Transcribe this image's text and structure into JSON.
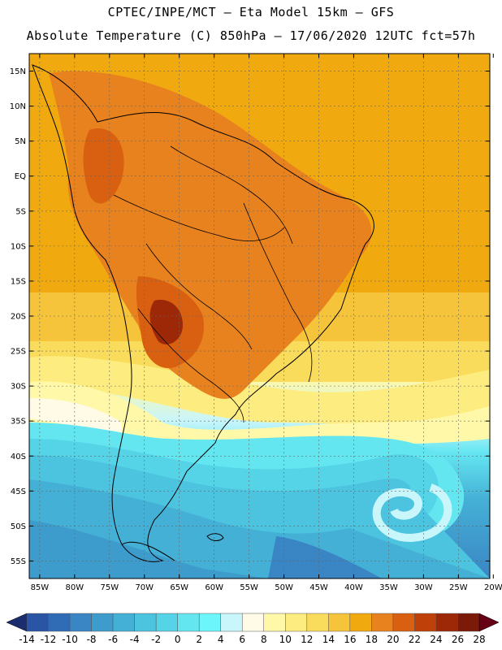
{
  "header": {
    "line1": "CPTEC/INPE/MCT —  Eta Model 15km — GFS",
    "line2": "Absolute Temperature (C) 850hPa — 17/06/2020 12UTC fct=57h"
  },
  "map": {
    "lat_labels": [
      "15N",
      "10N",
      "5N",
      "EQ",
      "5S",
      "10S",
      "15S",
      "20S",
      "25S",
      "30S",
      "35S",
      "40S",
      "45S",
      "50S",
      "55S"
    ],
    "lon_labels": [
      "85W",
      "80W",
      "75W",
      "70W",
      "65W",
      "60W",
      "55W",
      "50W",
      "45W",
      "40W",
      "35W",
      "30W",
      "25W",
      "20W"
    ],
    "lat_range": [
      17.5,
      -57.5
    ],
    "lon_range": [
      -86.5,
      -20.5
    ]
  },
  "colorbar": {
    "labels": [
      "-14",
      "-12",
      "-10",
      "-8",
      "-6",
      "-4",
      "-2",
      "0",
      "2",
      "4",
      "6",
      "8",
      "10",
      "12",
      "14",
      "16",
      "18",
      "20",
      "22",
      "24",
      "26",
      "28"
    ],
    "colors": [
      "#1f3c8c",
      "#2a55a5",
      "#2f6cb5",
      "#3a85c4",
      "#3e9ccc",
      "#45b0d6",
      "#4cc3df",
      "#55d4e8",
      "#64e6f1",
      "#6cf6fb",
      "#c8f6fb",
      "#fffbe6",
      "#fff8a8",
      "#fdec80",
      "#fadc5c",
      "#f5c43a",
      "#f0aa0f",
      "#e8821e",
      "#d86010",
      "#bf4008",
      "#9c2808",
      "#7c1a0a"
    ],
    "left_arrow_color": "#1b2d6e",
    "right_arrow_color": "#660014"
  }
}
